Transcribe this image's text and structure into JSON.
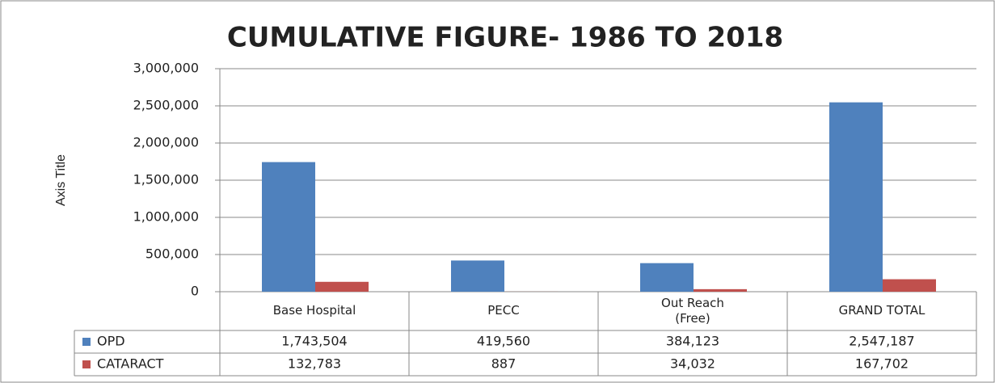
{
  "chart_data": {
    "type": "bar",
    "title": "CUMULATIVE FIGURE- 1986 TO 2018",
    "ylabel": "Axis Title",
    "categories": [
      "Base Hospital",
      "PECC",
      "Out Reach (Free)",
      "GRAND TOTAL"
    ],
    "series": [
      {
        "name": "OPD",
        "color": "#4f81bd",
        "values": [
          1743504,
          419560,
          384123,
          2547187
        ],
        "value_labels": [
          "1,743,504",
          "419,560",
          "384,123",
          "2,547,187"
        ]
      },
      {
        "name": "CATARACT",
        "color": "#c0504d",
        "values": [
          132783,
          887,
          34032,
          167702
        ],
        "value_labels": [
          "132,783",
          "887",
          "34,032",
          "167,702"
        ]
      }
    ],
    "ylim": [
      0,
      3000000
    ],
    "yticks": [
      {
        "value": 0,
        "label": "0"
      },
      {
        "value": 500000,
        "label": "500,000"
      },
      {
        "value": 1000000,
        "label": "1,000,000"
      },
      {
        "value": 1500000,
        "label": "1,500,000"
      },
      {
        "value": 2000000,
        "label": "2,000,000"
      },
      {
        "value": 2500000,
        "label": "2,500,000"
      },
      {
        "value": 3000000,
        "label": "3,000,000"
      }
    ],
    "grid": true
  }
}
